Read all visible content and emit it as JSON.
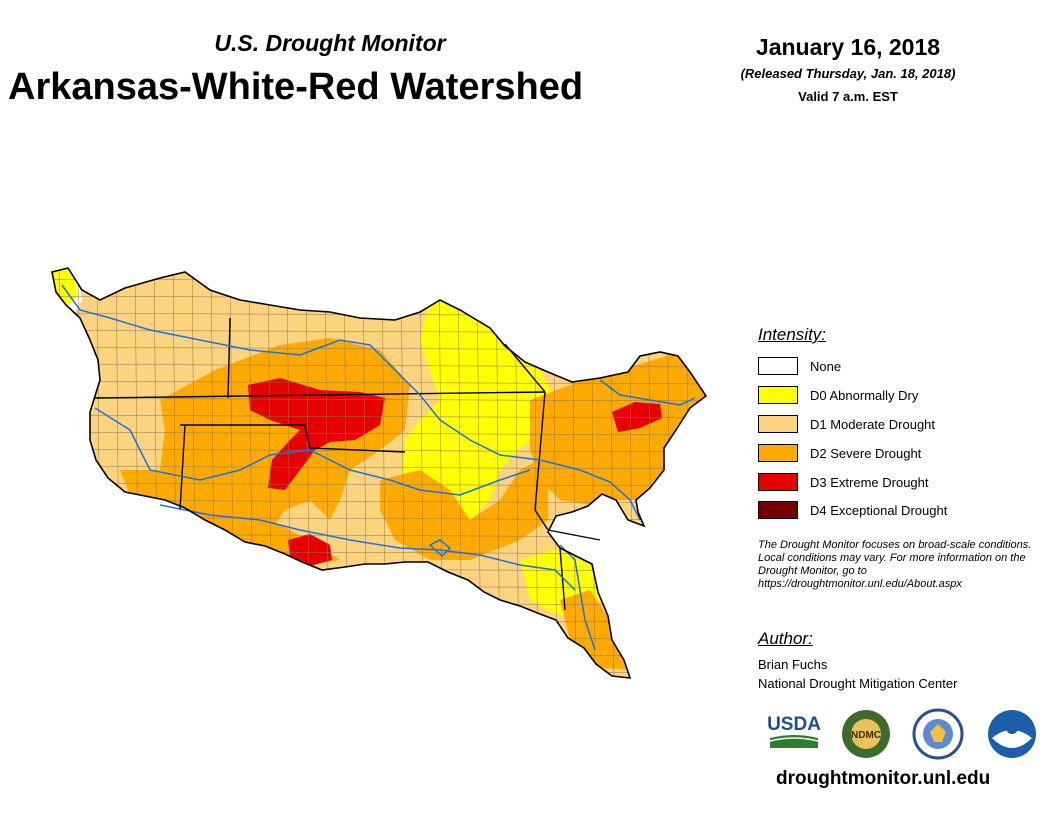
{
  "header": {
    "subtitle": "U.S. Drought Monitor",
    "title": "Arkansas-White-Red Watershed",
    "date": "January 16, 2018",
    "released": "(Released Thursday, Jan. 18, 2018)",
    "valid": "Valid 7 a.m. EST"
  },
  "legend": {
    "title": "Intensity:",
    "items": [
      {
        "label": "None",
        "color": "#ffffff"
      },
      {
        "label": "D0 Abnormally Dry",
        "color": "#ffff00"
      },
      {
        "label": "D1 Moderate Drought",
        "color": "#fcd37f"
      },
      {
        "label": "D2 Severe Drought",
        "color": "#ffaa00"
      },
      {
        "label": "D3 Extreme Drought",
        "color": "#e60000"
      },
      {
        "label": "D4 Exceptional Drought",
        "color": "#730000"
      }
    ]
  },
  "note": "The Drought Monitor focuses on broad-scale conditions. Local conditions may vary. For more information on the Drought Monitor, go to https://droughtmonitor.unl.edu/About.aspx",
  "author": {
    "title": "Author:",
    "name": "Brian Fuchs",
    "org": "National Drought Mitigation Center"
  },
  "logos": {
    "usda": "USDA",
    "ndmc": "NDMC",
    "doc_icon": "dept-of-commerce-seal-icon",
    "noaa": "NOAA"
  },
  "footer": {
    "url": "droughtmonitor.unl.edu"
  },
  "colors": {
    "river": "#1e6fe6",
    "border": "#000000",
    "county": "#8a7a5a"
  }
}
